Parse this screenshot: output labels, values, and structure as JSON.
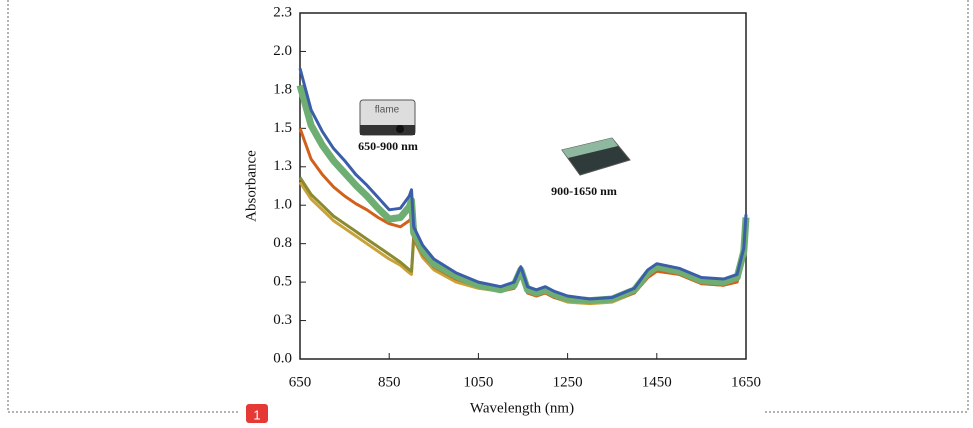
{
  "badge": "1",
  "chart_data": {
    "type": "line",
    "x_label": "Wavelength (nm)",
    "y_label": "Absorbance",
    "annotations": [
      "650-900 nm",
      "900-1650 nm"
    ],
    "device_brand": "flame",
    "x": [
      650,
      675,
      700,
      725,
      750,
      775,
      800,
      825,
      850,
      875,
      895,
      900,
      905,
      925,
      950,
      1000,
      1050,
      1100,
      1130,
      1145,
      1160,
      1180,
      1200,
      1220,
      1250,
      1300,
      1350,
      1400,
      1430,
      1450,
      1500,
      1550,
      1600,
      1630,
      1645,
      1650
    ],
    "series": [
      {
        "color": "#c9a23a",
        "values": [
          1.15,
          1.04,
          0.97,
          0.9,
          0.85,
          0.8,
          0.75,
          0.7,
          0.65,
          0.61,
          0.56,
          0.55,
          0.78,
          0.66,
          0.58,
          0.5,
          0.46,
          0.44,
          0.46,
          0.55,
          0.43,
          0.41,
          0.43,
          0.4,
          0.37,
          0.36,
          0.37,
          0.43,
          0.54,
          0.58,
          0.55,
          0.49,
          0.48,
          0.51,
          0.66,
          0.88
        ]
      },
      {
        "color": "#8a8a30",
        "values": [
          1.18,
          1.07,
          1.0,
          0.93,
          0.88,
          0.83,
          0.78,
          0.73,
          0.68,
          0.63,
          0.58,
          0.57,
          0.8,
          0.68,
          0.6,
          0.52,
          0.47,
          0.45,
          0.47,
          0.57,
          0.44,
          0.42,
          0.44,
          0.41,
          0.38,
          0.37,
          0.38,
          0.44,
          0.55,
          0.59,
          0.56,
          0.5,
          0.49,
          0.52,
          0.68,
          0.9
        ]
      },
      {
        "color": "#d2601a",
        "values": [
          1.5,
          1.3,
          1.2,
          1.12,
          1.06,
          1.01,
          0.97,
          0.92,
          0.88,
          0.86,
          0.9,
          0.92,
          0.78,
          0.68,
          0.6,
          0.52,
          0.47,
          0.44,
          0.46,
          0.56,
          0.43,
          0.41,
          0.43,
          0.4,
          0.38,
          0.37,
          0.38,
          0.43,
          0.53,
          0.57,
          0.55,
          0.49,
          0.48,
          0.5,
          0.67,
          0.88
        ]
      },
      {
        "color": "#6fae72",
        "values": [
          1.78,
          1.52,
          1.39,
          1.29,
          1.21,
          1.13,
          1.06,
          0.98,
          0.91,
          0.92,
          0.99,
          1.03,
          0.82,
          0.71,
          0.62,
          0.54,
          0.48,
          0.45,
          0.48,
          0.58,
          0.45,
          0.43,
          0.45,
          0.42,
          0.39,
          0.38,
          0.39,
          0.45,
          0.56,
          0.6,
          0.57,
          0.51,
          0.5,
          0.53,
          0.7,
          0.92
        ]
      },
      {
        "color": "#3a5fa8",
        "values": [
          1.89,
          1.62,
          1.48,
          1.37,
          1.29,
          1.2,
          1.13,
          1.05,
          0.97,
          0.98,
          1.06,
          1.1,
          0.86,
          0.74,
          0.65,
          0.56,
          0.5,
          0.47,
          0.5,
          0.6,
          0.47,
          0.45,
          0.47,
          0.44,
          0.41,
          0.39,
          0.4,
          0.46,
          0.58,
          0.62,
          0.59,
          0.53,
          0.52,
          0.55,
          0.72,
          0.94
        ]
      }
    ],
    "xlim": [
      650,
      1650
    ],
    "xticks": [
      650,
      850,
      1050,
      1250,
      1450,
      1650
    ],
    "ylim": [
      0,
      2.25
    ],
    "yticks": [
      {
        "value": 0,
        "label": "0.0"
      },
      {
        "value": 0.25,
        "label": "0.3"
      },
      0.5,
      {
        "value": 0.75,
        "label": "0.8"
      },
      {
        "value": 1,
        "label": "1.0"
      },
      {
        "value": 1.25,
        "label": "1.3"
      },
      1.5,
      {
        "value": 1.75,
        "label": "1.8"
      },
      {
        "value": 2,
        "label": "2.0"
      },
      {
        "value": 2.25,
        "label": "2.3"
      }
    ]
  }
}
